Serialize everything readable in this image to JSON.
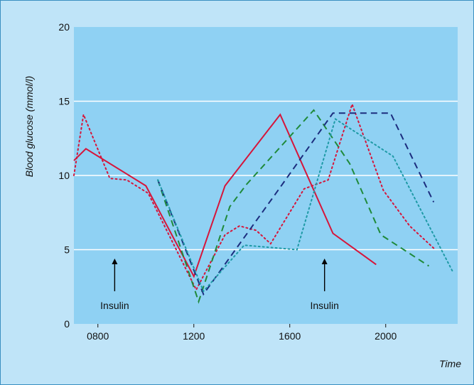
{
  "colors": {
    "outer_background": "#bfe4f8",
    "plot_background": "#8fd1f3",
    "frame_border": "#3a8fc0",
    "gridline": "#ffffff",
    "axis_text": "#111111",
    "red": "#d6153a",
    "green": "#1f8a3a",
    "navy": "#1c2d7e",
    "teal": "#1e9aa6"
  },
  "chart_data": {
    "type": "line",
    "title": "",
    "xlabel": "Time",
    "ylabel": "Blood glucose (mmol/l)",
    "xlim": [
      700,
      2300
    ],
    "ylim": [
      0,
      20
    ],
    "x_ticks": [
      800,
      1200,
      1600,
      2000
    ],
    "x_tick_labels": [
      "0800",
      "1200",
      "1600",
      "2000"
    ],
    "y_ticks": [
      0,
      5,
      10,
      15,
      20
    ],
    "y_tick_labels": [
      "0",
      "5",
      "10",
      "15",
      "20"
    ],
    "grid": "horizontal",
    "annotations": [
      {
        "label": "Insulin",
        "x": 870,
        "arrow_from_y": 2.2,
        "arrow_to_y": 4.4
      },
      {
        "label": "Insulin",
        "x": 1745,
        "arrow_from_y": 2.2,
        "arrow_to_y": 4.4
      }
    ],
    "series": [
      {
        "color": "#d6153a",
        "dash": "solid",
        "points": [
          [
            700,
            11.0
          ],
          [
            750,
            11.8
          ],
          [
            1000,
            9.3
          ],
          [
            1200,
            3.2
          ],
          [
            1330,
            9.3
          ],
          [
            1560,
            14.1
          ],
          [
            1780,
            6.1
          ],
          [
            1960,
            4.0
          ]
        ]
      },
      {
        "color": "#d6153a",
        "dash": "dotted",
        "points": [
          [
            700,
            10.0
          ],
          [
            740,
            14.1
          ],
          [
            850,
            9.8
          ],
          [
            920,
            9.7
          ],
          [
            1010,
            8.8
          ],
          [
            1210,
            2.3
          ],
          [
            1330,
            6.0
          ],
          [
            1390,
            6.6
          ],
          [
            1460,
            6.3
          ],
          [
            1520,
            5.4
          ],
          [
            1660,
            9.1
          ],
          [
            1760,
            9.7
          ],
          [
            1860,
            14.8
          ],
          [
            1990,
            9.0
          ],
          [
            2100,
            6.6
          ],
          [
            2200,
            5.1
          ]
        ]
      },
      {
        "color": "#1f8a3a",
        "dash": "dashed",
        "points": [
          [
            1050,
            9.7
          ],
          [
            1220,
            1.5
          ],
          [
            1350,
            7.9
          ],
          [
            1420,
            9.4
          ],
          [
            1700,
            14.4
          ],
          [
            1850,
            10.8
          ],
          [
            1980,
            6.0
          ],
          [
            2180,
            3.9
          ]
        ]
      },
      {
        "color": "#1c2d7e",
        "dash": "dashed",
        "points": [
          [
            1050,
            9.7
          ],
          [
            1240,
            2.0
          ],
          [
            1560,
            9.2
          ],
          [
            1780,
            14.2
          ],
          [
            2020,
            14.2
          ],
          [
            2200,
            8.2
          ]
        ]
      },
      {
        "color": "#1e9aa6",
        "dash": "dotted",
        "points": [
          [
            1050,
            9.7
          ],
          [
            1240,
            2.2
          ],
          [
            1410,
            5.3
          ],
          [
            1630,
            5.0
          ],
          [
            1790,
            13.8
          ],
          [
            2030,
            11.3
          ],
          [
            2280,
            3.5
          ]
        ]
      }
    ]
  }
}
